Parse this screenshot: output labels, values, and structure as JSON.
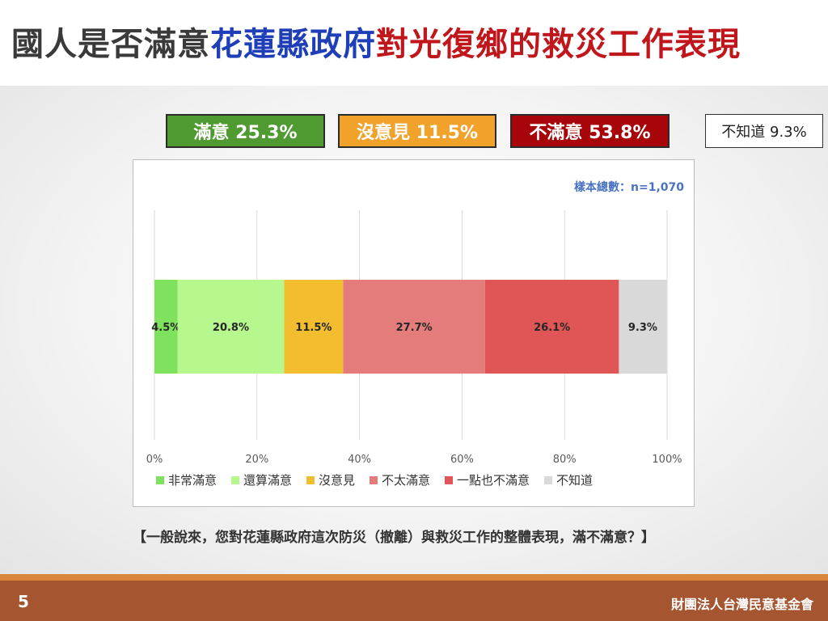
{
  "title": {
    "part1": "國人是否滿意",
    "part2": "花蓮縣政府",
    "part3": "對光復鄉的救災工作表現"
  },
  "summary": {
    "satisfied": "滿意 25.3%",
    "neutral": "沒意見 11.5%",
    "dissatisfied": "不滿意 53.8%",
    "unknown": "不知道 9.3%"
  },
  "colors": {
    "title_blue": "#1f3fb8",
    "title_red": "#c0171d",
    "box_satisfied": "#4f9a31",
    "box_neutral": "#f0a22b",
    "box_dissatisfied": "#a8050a",
    "footer": "#a55530"
  },
  "chart_data": {
    "type": "bar",
    "orientation": "horizontal",
    "stacked": true,
    "sample_label": "樣本總數：n=1,070",
    "xlim": [
      0,
      100
    ],
    "x_ticks": [
      "0%",
      "20%",
      "40%",
      "60%",
      "80%",
      "100%"
    ],
    "grid": true,
    "legend_position": "bottom",
    "series": [
      {
        "name": "非常滿意",
        "value": 4.5,
        "label": "4.5%",
        "color": "#7ee25e"
      },
      {
        "name": "還算滿意",
        "value": 20.8,
        "label": "20.8%",
        "color": "#b6f78e"
      },
      {
        "name": "沒意見",
        "value": 11.5,
        "label": "11.5%",
        "color": "#f2bd2f"
      },
      {
        "name": "不太滿意",
        "value": 27.7,
        "label": "27.7%",
        "color": "#e57c7c"
      },
      {
        "name": "一點也不滿意",
        "value": 26.1,
        "label": "26.1%",
        "color": "#e05556"
      },
      {
        "name": "不知道",
        "value": 9.3,
        "label": "9.3%",
        "color": "#d9d9d9"
      }
    ]
  },
  "question": "【一般說來，您對花蓮縣政府這次防災（撤離）與救災工作的整體表現，滿不滿意？】",
  "footer": {
    "page_number": "5",
    "organization": "財團法人台灣民意基金會"
  }
}
